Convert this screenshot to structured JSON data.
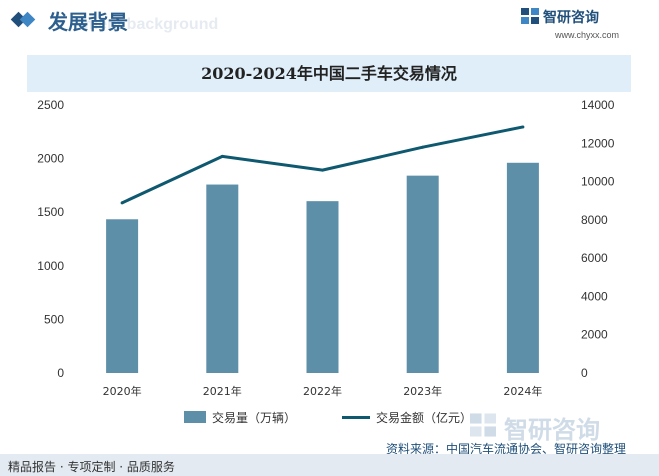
{
  "header": {
    "title": "发展背景",
    "title_watermark": "ment background",
    "brand_name": "智研咨询",
    "brand_url": "www.chyxx.com"
  },
  "chart_data": {
    "type": "bar",
    "title": "2020-2024年中国二手车交易情况",
    "categories": [
      "2020年",
      "2021年",
      "2022年",
      "2023年",
      "2024年"
    ],
    "series": [
      {
        "name": "交易量（万辆）",
        "type": "bar",
        "axis": "left",
        "values": [
          1434,
          1758,
          1603,
          1841,
          1961
        ]
      },
      {
        "name": "交易金额（亿元）",
        "type": "line",
        "axis": "right",
        "values": [
          8888,
          11317,
          10597,
          11795,
          12854
        ]
      }
    ],
    "y_left": {
      "ticks": [
        0,
        500,
        1000,
        1500,
        2000,
        2500
      ],
      "lim": [
        0,
        2500
      ]
    },
    "y_right": {
      "ticks": [
        0,
        2000,
        4000,
        6000,
        8000,
        10000,
        12000,
        14000
      ],
      "lim": [
        0,
        14000
      ]
    },
    "grid": false,
    "legend": "bottom"
  },
  "colors": {
    "bar": "#5d8fa8",
    "line": "#0e5870",
    "title_bar": "#dfeef9",
    "brand": "#1f4f7a"
  },
  "footer": {
    "left_text": "精品报告 · 专项定制 · 品质服务",
    "source": "资料来源：中国汽车流通协会、智研咨询整理",
    "watermark": "智研咨询"
  },
  "icons": [
    "diamond-icon",
    "brand-logo-icon"
  ]
}
